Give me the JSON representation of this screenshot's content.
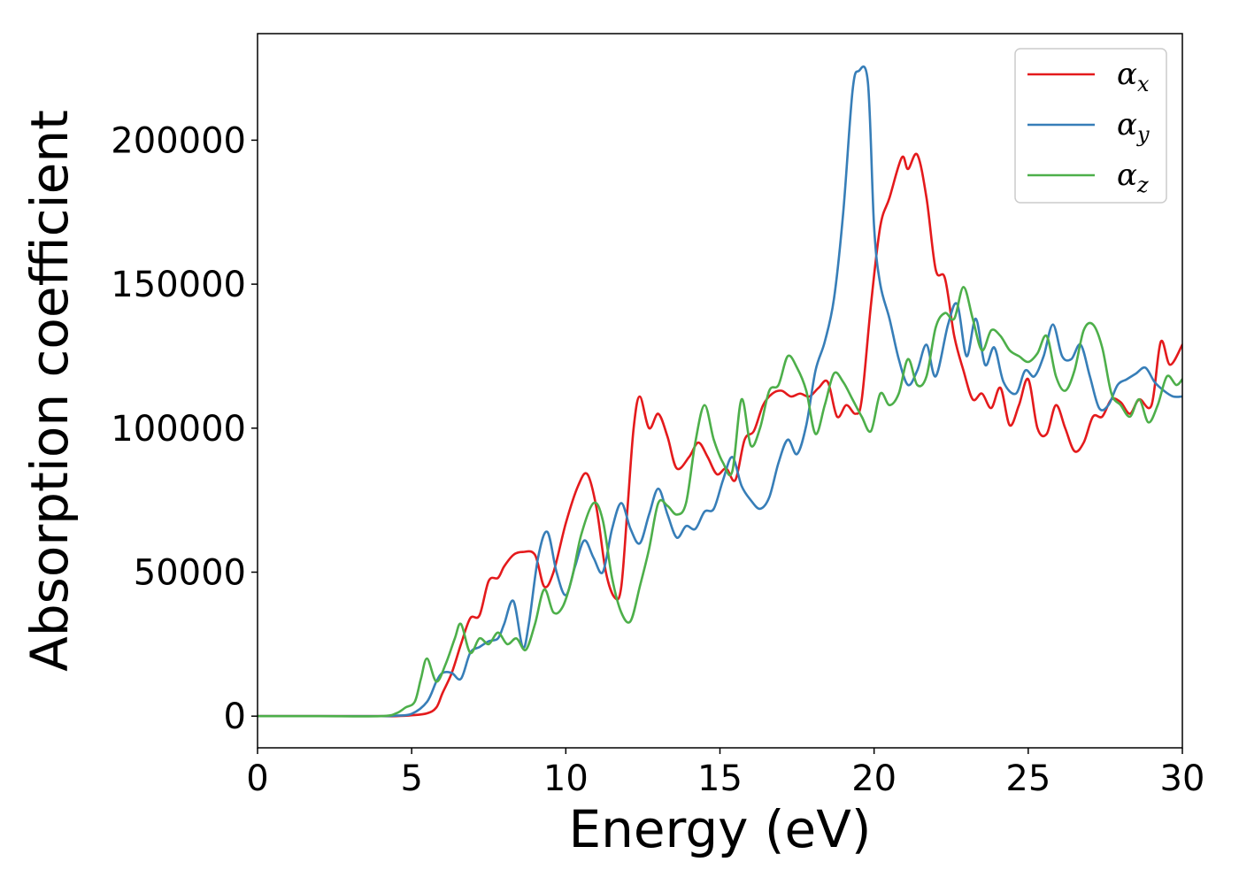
{
  "chart_data": {
    "type": "line",
    "title": "",
    "xlabel": "Energy (eV)",
    "ylabel": "Absorption coefficient",
    "xlim": [
      0,
      30
    ],
    "ylim": [
      -11000,
      237000
    ],
    "xticks": [
      0,
      5,
      10,
      15,
      20,
      25,
      30
    ],
    "xtick_labels": [
      "0",
      "5",
      "10",
      "15",
      "20",
      "25",
      "30"
    ],
    "yticks": [
      0,
      50000,
      100000,
      150000,
      200000
    ],
    "ytick_labels": [
      "0",
      "50000",
      "100000",
      "150000",
      "200000"
    ],
    "grid": false,
    "legend_position": "top-right",
    "series": [
      {
        "name": "α_x",
        "legend_base": "α",
        "legend_sub": "x",
        "color": "#e41a1c",
        "x": [
          0,
          2,
          4,
          4.5,
          5,
          5.5,
          5.8,
          6,
          6.3,
          6.6,
          6.9,
          7.2,
          7.5,
          7.8,
          8.0,
          8.3,
          8.6,
          9.0,
          9.3,
          9.6,
          10.0,
          10.4,
          10.7,
          11.0,
          11.3,
          11.6,
          11.8,
          12.0,
          12.2,
          12.4,
          12.7,
          13.0,
          13.3,
          13.6,
          14.0,
          14.3,
          14.6,
          14.9,
          15.2,
          15.5,
          15.8,
          16.1,
          16.4,
          16.7,
          17.0,
          17.3,
          17.6,
          17.9,
          18.2,
          18.5,
          18.8,
          19.1,
          19.4,
          19.6,
          19.9,
          20.2,
          20.5,
          20.9,
          21.1,
          21.4,
          21.7,
          22.0,
          22.3,
          22.6,
          22.9,
          23.2,
          23.5,
          23.8,
          24.1,
          24.4,
          24.7,
          25.0,
          25.3,
          25.6,
          25.9,
          26.2,
          26.5,
          26.8,
          27.1,
          27.4,
          27.7,
          28.0,
          28.3,
          28.6,
          29.0,
          29.3,
          29.6,
          30.0
        ],
        "y": [
          0,
          0,
          0,
          0,
          300,
          1000,
          3000,
          8000,
          15000,
          25000,
          34000,
          35000,
          47000,
          48000,
          52000,
          56000,
          57000,
          56000,
          45000,
          50000,
          67000,
          80000,
          84000,
          72000,
          50000,
          41000,
          45000,
          72000,
          100000,
          111000,
          100000,
          105000,
          97000,
          86000,
          90000,
          95000,
          90000,
          84000,
          86000,
          82000,
          96000,
          99000,
          108000,
          112000,
          113000,
          111000,
          112000,
          111000,
          114000,
          116000,
          104000,
          108000,
          105000,
          110000,
          143000,
          170000,
          180000,
          194000,
          190000,
          195000,
          180000,
          155000,
          152000,
          132000,
          120000,
          110000,
          112000,
          107000,
          114000,
          101000,
          108000,
          117000,
          100000,
          98000,
          108000,
          100000,
          92000,
          95000,
          104000,
          104000,
          110000,
          109000,
          105000,
          110000,
          108000,
          130000,
          122000,
          129000
        ]
      },
      {
        "name": "α_y",
        "legend_base": "α",
        "legend_sub": "y",
        "color": "#377eb8",
        "x": [
          0,
          2,
          4,
          4.5,
          5,
          5.5,
          5.8,
          6.0,
          6.3,
          6.6,
          6.9,
          7.2,
          7.5,
          7.8,
          8.0,
          8.3,
          8.6,
          8.8,
          9.1,
          9.4,
          9.7,
          10.0,
          10.3,
          10.6,
          10.9,
          11.2,
          11.5,
          11.8,
          12.1,
          12.4,
          12.7,
          13.0,
          13.3,
          13.6,
          13.9,
          14.2,
          14.5,
          14.8,
          15.1,
          15.4,
          15.7,
          16.0,
          16.3,
          16.6,
          16.9,
          17.2,
          17.5,
          17.8,
          18.1,
          18.4,
          18.7,
          19.0,
          19.3,
          19.5,
          19.8,
          20.0,
          20.2,
          20.5,
          20.8,
          21.1,
          21.4,
          21.7,
          22.0,
          22.4,
          22.7,
          23.0,
          23.3,
          23.6,
          23.9,
          24.2,
          24.6,
          24.9,
          25.2,
          25.5,
          25.8,
          26.1,
          26.4,
          26.7,
          27.0,
          27.3,
          27.6,
          27.9,
          28.2,
          28.5,
          28.8,
          29.1,
          29.4,
          29.7,
          30.0
        ],
        "y": [
          0,
          0,
          0,
          200,
          800,
          5000,
          12000,
          15000,
          15000,
          13000,
          22000,
          24000,
          26000,
          27000,
          32000,
          40000,
          24000,
          32000,
          55000,
          64000,
          50000,
          42000,
          52000,
          61000,
          55000,
          50000,
          65000,
          74000,
          65000,
          60000,
          70000,
          79000,
          70000,
          62000,
          66000,
          65000,
          71000,
          72000,
          82000,
          90000,
          80000,
          75000,
          72000,
          76000,
          88000,
          96000,
          91000,
          101000,
          120000,
          130000,
          145000,
          175000,
          217000,
          224000,
          220000,
          170000,
          150000,
          138000,
          124000,
          115000,
          120000,
          129000,
          118000,
          136000,
          143000,
          125000,
          138000,
          122000,
          128000,
          116000,
          112000,
          120000,
          118000,
          125000,
          136000,
          125000,
          124000,
          129000,
          118000,
          107000,
          108000,
          115000,
          117000,
          119000,
          121000,
          116000,
          113000,
          111000,
          111000
        ]
      },
      {
        "name": "α_z",
        "legend_base": "α",
        "legend_sub": "z",
        "color": "#4daf4a",
        "x": [
          0,
          2,
          4,
          4.5,
          4.8,
          5.1,
          5.3,
          5.5,
          5.8,
          6.1,
          6.4,
          6.6,
          6.9,
          7.2,
          7.5,
          7.8,
          8.1,
          8.4,
          8.7,
          9.0,
          9.3,
          9.6,
          9.9,
          10.2,
          10.5,
          10.9,
          11.2,
          11.5,
          11.8,
          12.1,
          12.4,
          12.7,
          13.0,
          13.3,
          13.6,
          13.9,
          14.2,
          14.5,
          14.8,
          15.1,
          15.4,
          15.7,
          16.0,
          16.3,
          16.6,
          16.9,
          17.2,
          17.5,
          17.8,
          18.1,
          18.4,
          18.7,
          19.0,
          19.3,
          19.6,
          19.9,
          20.2,
          20.5,
          20.8,
          21.1,
          21.4,
          21.7,
          22.0,
          22.3,
          22.6,
          22.9,
          23.2,
          23.5,
          23.8,
          24.1,
          24.4,
          24.7,
          25.0,
          25.3,
          25.6,
          25.9,
          26.2,
          26.5,
          26.8,
          27.1,
          27.4,
          27.7,
          28.0,
          28.3,
          28.6,
          28.9,
          29.2,
          29.5,
          29.8,
          30.0
        ],
        "y": [
          0,
          0,
          0,
          1000,
          3000,
          5000,
          13000,
          20000,
          12000,
          18000,
          27000,
          32000,
          22000,
          27000,
          25000,
          29000,
          25000,
          27000,
          23000,
          32000,
          44000,
          36000,
          38000,
          48000,
          63000,
          74000,
          68000,
          48000,
          36000,
          33000,
          45000,
          58000,
          74000,
          73000,
          70000,
          74000,
          95000,
          108000,
          96000,
          88000,
          85000,
          110000,
          94000,
          100000,
          113000,
          115000,
          125000,
          121000,
          113000,
          98000,
          108000,
          119000,
          116000,
          110000,
          104000,
          99000,
          112000,
          108000,
          112000,
          124000,
          115000,
          118000,
          135000,
          140000,
          138000,
          149000,
          138000,
          127000,
          134000,
          132000,
          127000,
          125000,
          123000,
          126000,
          132000,
          118000,
          113000,
          120000,
          134000,
          136000,
          128000,
          112000,
          108000,
          104000,
          110000,
          102000,
          108000,
          118000,
          115000,
          117000
        ]
      }
    ]
  }
}
